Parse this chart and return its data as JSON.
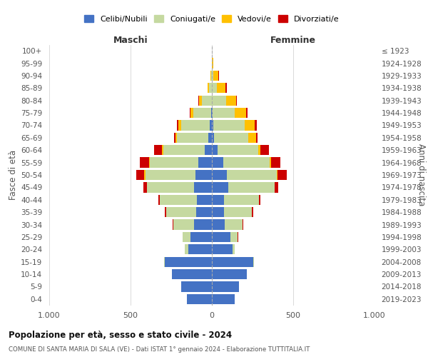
{
  "age_groups": [
    "0-4",
    "5-9",
    "10-14",
    "15-19",
    "20-24",
    "25-29",
    "30-34",
    "35-39",
    "40-44",
    "45-49",
    "50-54",
    "55-59",
    "60-64",
    "65-69",
    "70-74",
    "75-79",
    "80-84",
    "85-89",
    "90-94",
    "95-99",
    "100+"
  ],
  "birth_years": [
    "2019-2023",
    "2014-2018",
    "2009-2013",
    "2004-2008",
    "1999-2003",
    "1994-1998",
    "1989-1993",
    "1984-1988",
    "1979-1983",
    "1974-1978",
    "1969-1973",
    "1964-1968",
    "1959-1963",
    "1954-1958",
    "1949-1953",
    "1944-1948",
    "1939-1943",
    "1934-1938",
    "1929-1933",
    "1924-1928",
    "≤ 1923"
  ],
  "maschi": {
    "celibi": [
      155,
      190,
      245,
      290,
      145,
      130,
      110,
      95,
      90,
      110,
      100,
      85,
      45,
      20,
      15,
      5,
      2,
      0,
      0,
      0,
      0
    ],
    "coniugati": [
      0,
      0,
      0,
      5,
      20,
      50,
      125,
      185,
      230,
      290,
      310,
      295,
      255,
      195,
      175,
      110,
      60,
      18,
      5,
      2,
      0
    ],
    "vedovi": [
      0,
      0,
      0,
      0,
      0,
      0,
      0,
      0,
      0,
      0,
      5,
      5,
      5,
      10,
      15,
      15,
      15,
      8,
      2,
      0,
      0
    ],
    "divorziati": [
      0,
      0,
      0,
      0,
      0,
      0,
      5,
      8,
      10,
      20,
      50,
      60,
      50,
      8,
      8,
      5,
      5,
      2,
      0,
      0,
      0
    ]
  },
  "femmine": {
    "nubili": [
      140,
      165,
      215,
      255,
      125,
      115,
      80,
      75,
      75,
      100,
      90,
      70,
      35,
      15,
      10,
      5,
      2,
      0,
      0,
      0,
      0
    ],
    "coniugate": [
      0,
      0,
      0,
      5,
      15,
      45,
      110,
      170,
      215,
      285,
      310,
      285,
      250,
      210,
      190,
      135,
      85,
      30,
      10,
      2,
      0
    ],
    "vedove": [
      0,
      0,
      0,
      0,
      0,
      0,
      0,
      0,
      0,
      2,
      5,
      8,
      15,
      45,
      65,
      70,
      60,
      55,
      30,
      5,
      0
    ],
    "divorziate": [
      0,
      0,
      0,
      0,
      0,
      2,
      5,
      8,
      10,
      20,
      55,
      60,
      50,
      10,
      10,
      8,
      8,
      5,
      2,
      0,
      0
    ]
  },
  "colors": {
    "celibi": "#4472c4",
    "coniugati": "#c5d9a0",
    "vedovi": "#ffc000",
    "divorziati": "#cc0000"
  },
  "xlim": 1000,
  "title": "Popolazione per età, sesso e stato civile - 2024",
  "subtitle": "COMUNE DI SANTA MARIA DI SALA (VE) - Dati ISTAT 1° gennaio 2024 - Elaborazione TUTTITALIA.IT",
  "xlabel_left": "Maschi",
  "xlabel_right": "Femmine",
  "ylabel_left": "Fasce di età",
  "ylabel_right": "Anni di nascita",
  "legend_labels": [
    "Celibi/Nubili",
    "Coniugati/e",
    "Vedovi/e",
    "Divorziati/e"
  ]
}
